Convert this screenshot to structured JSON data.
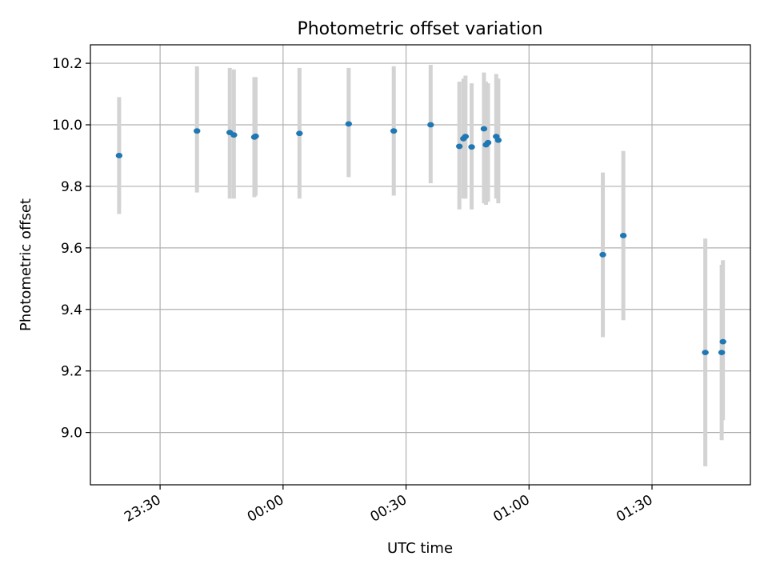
{
  "chart_data": {
    "type": "scatter",
    "title": "Photometric offset variation",
    "xlabel": "UTC time",
    "ylabel": "Photometric offset",
    "x_axis_type": "time",
    "xlim": [
      "23:13",
      "01:54"
    ],
    "ylim": [
      8.83,
      10.26
    ],
    "x_ticks": [
      "23:30",
      "00:00",
      "00:30",
      "01:00",
      "01:30"
    ],
    "y_ticks": [
      9.0,
      9.2,
      9.4,
      9.6,
      9.8,
      10.0,
      10.2
    ],
    "y_tick_labels": [
      "9.0",
      "9.2",
      "9.4",
      "9.6",
      "9.8",
      "10.0",
      "10.2"
    ],
    "grid": true,
    "colors": {
      "marker": "#1f77b4",
      "errorbar": "#d3d3d3",
      "grid": "#b0b0b0"
    },
    "points": [
      {
        "t": "23:20",
        "y": 9.9,
        "lo": 9.71,
        "hi": 10.09
      },
      {
        "t": "23:39",
        "y": 9.98,
        "lo": 9.78,
        "hi": 10.19
      },
      {
        "t": "23:47",
        "y": 9.975,
        "lo": 9.76,
        "hi": 10.185
      },
      {
        "t": "23:48",
        "y": 9.967,
        "lo": 9.76,
        "hi": 10.18
      },
      {
        "t": "23:53",
        "y": 9.96,
        "lo": 9.765,
        "hi": 10.155
      },
      {
        "t": "23:53.3",
        "y": 9.963,
        "lo": 9.77,
        "hi": 10.155
      },
      {
        "t": "00:04",
        "y": 9.972,
        "lo": 9.76,
        "hi": 10.185
      },
      {
        "t": "00:16",
        "y": 10.003,
        "lo": 9.83,
        "hi": 10.185
      },
      {
        "t": "00:27",
        "y": 9.98,
        "lo": 9.77,
        "hi": 10.19
      },
      {
        "t": "00:36",
        "y": 10.0,
        "lo": 9.81,
        "hi": 10.195
      },
      {
        "t": "00:43",
        "y": 9.93,
        "lo": 9.725,
        "hi": 10.14
      },
      {
        "t": "00:44",
        "y": 9.955,
        "lo": 9.76,
        "hi": 10.15
      },
      {
        "t": "00:44.5",
        "y": 9.962,
        "lo": 9.76,
        "hi": 10.16
      },
      {
        "t": "00:46",
        "y": 9.928,
        "lo": 9.725,
        "hi": 10.135
      },
      {
        "t": "00:49",
        "y": 9.987,
        "lo": 9.745,
        "hi": 10.17
      },
      {
        "t": "00:49.5",
        "y": 9.935,
        "lo": 9.74,
        "hi": 10.14
      },
      {
        "t": "00:50",
        "y": 9.942,
        "lo": 9.75,
        "hi": 10.135
      },
      {
        "t": "00:52",
        "y": 9.962,
        "lo": 9.76,
        "hi": 10.165
      },
      {
        "t": "00:52.5",
        "y": 9.95,
        "lo": 9.745,
        "hi": 10.15
      },
      {
        "t": "01:18",
        "y": 9.578,
        "lo": 9.31,
        "hi": 9.845
      },
      {
        "t": "01:23",
        "y": 9.64,
        "lo": 9.365,
        "hi": 9.915
      },
      {
        "t": "01:43",
        "y": 9.26,
        "lo": 8.89,
        "hi": 9.63
      },
      {
        "t": "01:47",
        "y": 9.26,
        "lo": 8.975,
        "hi": 9.545
      },
      {
        "t": "01:47.3",
        "y": 9.295,
        "lo": 9.04,
        "hi": 9.56
      }
    ]
  }
}
